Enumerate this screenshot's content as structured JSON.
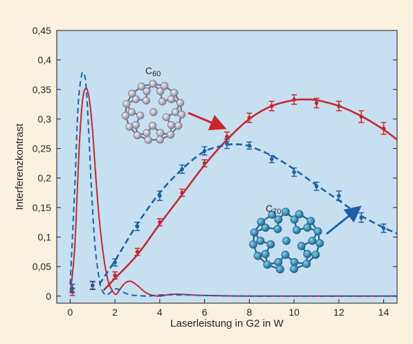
{
  "chart_data": {
    "type": "line",
    "title": "",
    "xlabel": "Laserleistung in G2 in W",
    "ylabel": "Interferenzkontrast",
    "xlim": [
      -0.6,
      14.6
    ],
    "ylim": [
      -0.012,
      0.45
    ],
    "xticks": [
      0,
      2,
      4,
      6,
      8,
      10,
      12,
      14
    ],
    "yticks": [
      0,
      0.05,
      0.1,
      0.15,
      0.2,
      0.25,
      0.3,
      0.35,
      0.4,
      0.45
    ],
    "ytick_labels": [
      "0",
      "0,05",
      "0,1",
      "0,15",
      "0,2",
      "0,25",
      "0,3",
      "0,35",
      "0,4",
      "0,45"
    ],
    "grid": false,
    "legend": "none",
    "annotations": [
      {
        "text": "C",
        "sub": "60",
        "points_to": "C60 curve near x=7"
      },
      {
        "text": "C",
        "sub": "70",
        "points_to": "C70 curve near x=12.8"
      }
    ],
    "series": [
      {
        "id": "c60",
        "color": "#c8262c",
        "style": "solid",
        "points": [
          {
            "x": 0.1,
            "y": 0.007,
            "err": 0.006
          },
          {
            "x": 1,
            "y": 0.018,
            "err": 0.006
          },
          {
            "x": 2,
            "y": 0.035,
            "err": 0.006
          },
          {
            "x": 3,
            "y": 0.075,
            "err": 0.006
          },
          {
            "x": 4,
            "y": 0.125,
            "err": 0.006
          },
          {
            "x": 5,
            "y": 0.175,
            "err": 0.006
          },
          {
            "x": 6,
            "y": 0.225,
            "err": 0.006
          },
          {
            "x": 7,
            "y": 0.27,
            "err": 0.008
          },
          {
            "x": 8,
            "y": 0.302,
            "err": 0.008
          },
          {
            "x": 9,
            "y": 0.322,
            "err": 0.008
          },
          {
            "x": 10,
            "y": 0.333,
            "err": 0.008
          },
          {
            "x": 11,
            "y": 0.327,
            "err": 0.008
          },
          {
            "x": 12,
            "y": 0.322,
            "err": 0.008
          },
          {
            "x": 13,
            "y": 0.304,
            "err": 0.01
          },
          {
            "x": 14,
            "y": 0.284,
            "err": 0.01
          }
        ],
        "fit": {
          "x": [
            0,
            0.2,
            0.4,
            0.55,
            0.7,
            0.85,
            1.0,
            1.15,
            1.3,
            1.5,
            1.7,
            1.9,
            2.05,
            2.2,
            2.45,
            2.7,
            3.0,
            3.3,
            3.6,
            4.0,
            4.5,
            5.0,
            6.0,
            8.0,
            10.0,
            12.0,
            14.6
          ],
          "y": [
            0.005,
            0.08,
            0.25,
            0.33,
            0.352,
            0.335,
            0.28,
            0.2,
            0.13,
            0.065,
            0.025,
            0.008,
            0.003,
            0.01,
            0.022,
            0.025,
            0.018,
            0.008,
            0.002,
            0,
            0.003,
            0.003,
            0.001,
            0,
            0,
            0,
            0
          ]
        },
        "curve": {
          "x": [
            1.5,
            2,
            3,
            4,
            5,
            6,
            7,
            8,
            9,
            10,
            10.5,
            11,
            12,
            13,
            14,
            14.6
          ],
          "y": [
            0.01,
            0.03,
            0.07,
            0.122,
            0.172,
            0.222,
            0.265,
            0.3,
            0.322,
            0.332,
            0.333,
            0.332,
            0.322,
            0.305,
            0.282,
            0.265
          ]
        }
      },
      {
        "id": "c70",
        "color": "#1f5ea8",
        "style": "dashed",
        "points": [
          {
            "x": 0.1,
            "y": 0.013,
            "err": 0.007
          },
          {
            "x": 1,
            "y": 0.018,
            "err": 0.007
          },
          {
            "x": 2,
            "y": 0.057,
            "err": 0.006
          },
          {
            "x": 3,
            "y": 0.118,
            "err": 0.007
          },
          {
            "x": 4,
            "y": 0.17,
            "err": 0.008
          },
          {
            "x": 5,
            "y": 0.215,
            "err": 0.007
          },
          {
            "x": 6,
            "y": 0.246,
            "err": 0.007
          },
          {
            "x": 7,
            "y": 0.258,
            "err": 0.008
          },
          {
            "x": 8,
            "y": 0.255,
            "err": 0.006
          },
          {
            "x": 9,
            "y": 0.232,
            "err": 0.006
          },
          {
            "x": 10,
            "y": 0.21,
            "err": 0.007
          },
          {
            "x": 11,
            "y": 0.186,
            "err": 0.007
          },
          {
            "x": 12,
            "y": 0.17,
            "err": 0.008
          },
          {
            "x": 13,
            "y": 0.133,
            "err": 0.008
          },
          {
            "x": 14,
            "y": 0.115,
            "err": 0.007
          }
        ],
        "fit": {
          "x": [
            0,
            0.2,
            0.35,
            0.5,
            0.6,
            0.7,
            0.8,
            0.95,
            1.1,
            1.25,
            1.4,
            1.6,
            1.8,
            2.0,
            2.2,
            2.4,
            2.7,
            3.0,
            3.5,
            4.0,
            5.0,
            8.0,
            14.6
          ],
          "y": [
            0.02,
            0.18,
            0.32,
            0.372,
            0.378,
            0.36,
            0.3,
            0.18,
            0.09,
            0.04,
            0.012,
            0.002,
            0.006,
            0.012,
            0.011,
            0.006,
            0.002,
            0.001,
            0,
            0.002,
            0.002,
            0,
            0
          ]
        },
        "curve": {
          "x": [
            1.3,
            2,
            3,
            4,
            5,
            6,
            7,
            7.5,
            8,
            9,
            10,
            11,
            12,
            13,
            14,
            14.6
          ],
          "y": [
            0.02,
            0.06,
            0.122,
            0.175,
            0.215,
            0.245,
            0.256,
            0.257,
            0.254,
            0.238,
            0.215,
            0.188,
            0.162,
            0.136,
            0.116,
            0.106
          ]
        }
      }
    ]
  }
}
